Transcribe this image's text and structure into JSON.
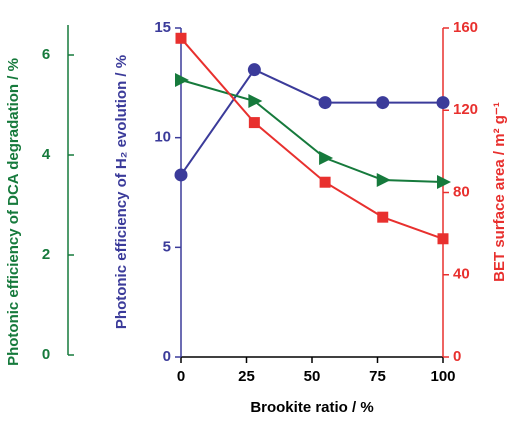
{
  "chart_data": {
    "type": "line",
    "xlabel": "Brookite ratio / %",
    "ylabel": "Photonic efficiency of H₂ evolution / %",
    "y2label": "BET surface area / m² g⁻¹",
    "y3label": "Photonic efficiency of DCA degradation / %",
    "x": [
      0,
      28,
      55,
      77,
      100
    ],
    "xlim": [
      0,
      100
    ],
    "xticks": [
      0,
      25,
      50,
      75,
      100
    ],
    "ylim": [
      0,
      15
    ],
    "yticks": [
      0,
      5,
      10,
      15
    ],
    "y2lim": [
      0,
      160
    ],
    "y2ticks": [
      0,
      40,
      80,
      120,
      160
    ],
    "y3lim": [
      0,
      6.6
    ],
    "y3ticks": [
      0,
      2,
      4,
      6
    ],
    "series": [
      {
        "name": "H2 evolution",
        "color": "#3b3b9a",
        "marker": "circle",
        "axis": "y",
        "values": [
          8.3,
          13.1,
          11.6,
          11.6,
          11.6
        ]
      },
      {
        "name": "DCA degradation",
        "color": "#167a3c",
        "marker": "triangle",
        "axis": "y3",
        "values": [
          5.5,
          5.08,
          3.94,
          3.5,
          3.46
        ]
      },
      {
        "name": "BET surface area",
        "color": "#e8302e",
        "marker": "square",
        "axis": "y2",
        "values": [
          155,
          114,
          85,
          68,
          57.5
        ]
      }
    ]
  }
}
